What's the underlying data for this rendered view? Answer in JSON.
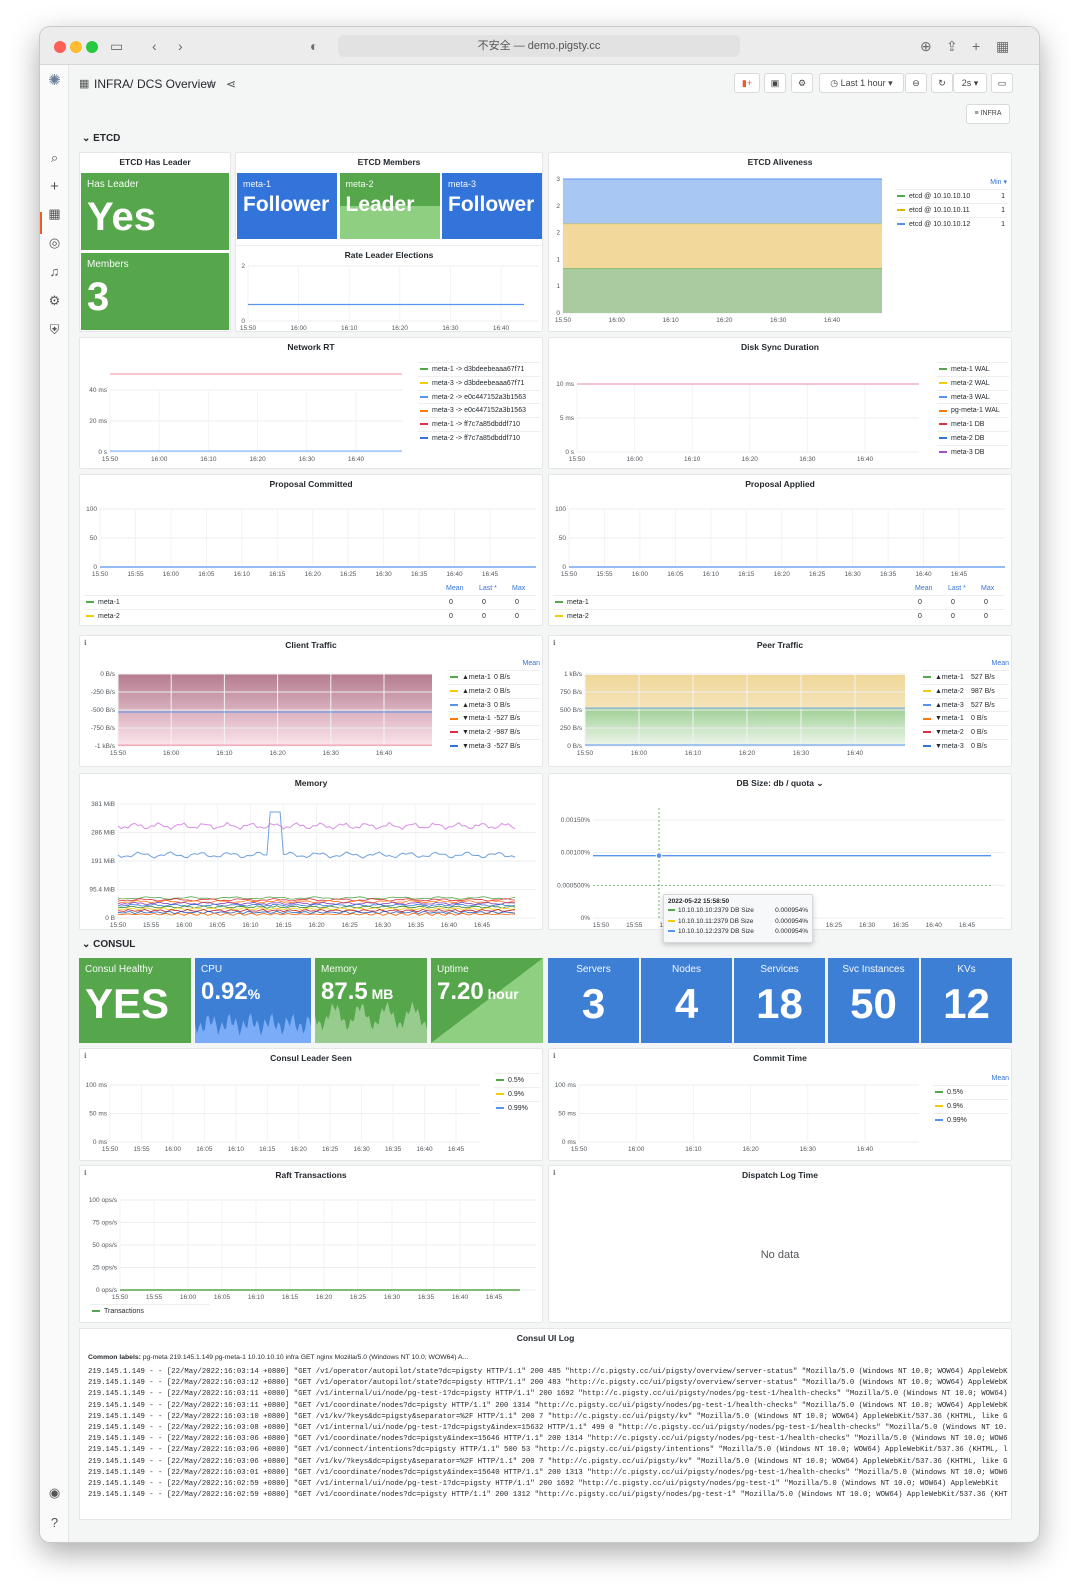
{
  "browser": {
    "url_text": "不安全 — demo.pigsty.cc"
  },
  "breadcrumb": {
    "folder": "INFRA",
    "dashboard": "DCS Overview"
  },
  "toolbar": {
    "time_range": "Last 1 hour",
    "refresh": "2s",
    "infra_link": "INFRA"
  },
  "sections": {
    "etcd": "ETCD",
    "consul": "CONSUL"
  },
  "etcd": {
    "has_leader": {
      "title": "ETCD Has Leader",
      "label": "Has Leader",
      "value": "Yes"
    },
    "members_stat": {
      "label": "Members",
      "value": "3"
    },
    "members": {
      "title": "ETCD Members",
      "items": [
        {
          "name": "meta-1",
          "role": "Follower",
          "color": "#3274d9"
        },
        {
          "name": "meta-2",
          "role": "Leader",
          "color": "#56a64b"
        },
        {
          "name": "meta-3",
          "role": "Follower",
          "color": "#3274d9"
        }
      ]
    },
    "rate_leader": {
      "title": "Rate Leader Elections",
      "y_ticks": [
        "2",
        "0"
      ],
      "x_ticks": [
        "15:50",
        "16:00",
        "16:10",
        "16:20",
        "16:30",
        "16:40"
      ]
    },
    "aliveness": {
      "title": "ETCD Aliveness",
      "y_ticks": [
        "3",
        "2",
        "2",
        "1",
        "1",
        "0"
      ],
      "x_ticks": [
        "15:50",
        "16:00",
        "16:10",
        "16:20",
        "16:30",
        "16:40"
      ],
      "legend_header": "Min",
      "legend": [
        {
          "name": "etcd @ 10.10.10.10",
          "value": "1",
          "color": "#56a64b"
        },
        {
          "name": "etcd @ 10.10.10.11",
          "value": "1",
          "color": "#e0b400"
        },
        {
          "name": "etcd @ 10.10.10.12",
          "value": "1",
          "color": "#5794f2"
        }
      ]
    },
    "network_rt": {
      "title": "Network RT",
      "y_ticks": [
        "40 ms",
        "20 ms",
        "0 s"
      ],
      "x_ticks": [
        "15:50",
        "16:00",
        "16:10",
        "16:20",
        "16:30",
        "16:40"
      ],
      "legend": [
        {
          "name": "meta-1 -> d3bdeebeaaa67f71",
          "color": "#56a64b"
        },
        {
          "name": "meta-3 -> d3bdeebeaaa67f71",
          "color": "#f2cc0c"
        },
        {
          "name": "meta-2 -> e0c447152a3b1563",
          "color": "#5794f2"
        },
        {
          "name": "meta-3 -> e0c447152a3b1563",
          "color": "#ff780a"
        },
        {
          "name": "meta-1 -> ff7c7a85dbddf710",
          "color": "#e02f44"
        },
        {
          "name": "meta-2 -> ff7c7a85dbddf710",
          "color": "#3274d9"
        }
      ]
    },
    "disk_sync": {
      "title": "Disk Sync Duration",
      "y_ticks": [
        "10 ms",
        "5 ms",
        "0 s"
      ],
      "x_ticks": [
        "15:50",
        "16:00",
        "16:10",
        "16:20",
        "16:30",
        "16:40"
      ],
      "legend": [
        {
          "name": "meta-1 WAL",
          "color": "#56a64b"
        },
        {
          "name": "meta-2 WAL",
          "color": "#f2cc0c"
        },
        {
          "name": "meta-3 WAL",
          "color": "#5794f2"
        },
        {
          "name": "pg-meta-1 WAL",
          "color": "#ff780a"
        },
        {
          "name": "meta-1 DB",
          "color": "#e02f44"
        },
        {
          "name": "meta-2 DB",
          "color": "#3274d9"
        },
        {
          "name": "meta-3 DB",
          "color": "#a352cc"
        }
      ]
    },
    "proposal_committed": {
      "title": "Proposal Committed",
      "y_ticks": [
        "100",
        "50",
        "0"
      ],
      "x_ticks": [
        "15:50",
        "15:55",
        "16:00",
        "16:05",
        "16:10",
        "16:15",
        "16:20",
        "16:25",
        "16:30",
        "16:35",
        "16:40",
        "16:45"
      ],
      "cols": [
        "Mean",
        "Last *",
        "Max"
      ],
      "legend": [
        {
          "name": "meta-1",
          "color": "#56a64b",
          "mean": "0",
          "last": "0",
          "max": "0"
        },
        {
          "name": "meta-2",
          "color": "#f2cc0c",
          "mean": "0",
          "last": "0",
          "max": "0"
        }
      ]
    },
    "proposal_applied": {
      "title": "Proposal Applied",
      "y_ticks": [
        "100",
        "50",
        "0"
      ],
      "x_ticks": [
        "15:50",
        "15:55",
        "16:00",
        "16:05",
        "16:10",
        "16:15",
        "16:20",
        "16:25",
        "16:30",
        "16:35",
        "16:40",
        "16:45"
      ],
      "cols": [
        "Mean",
        "Last *",
        "Max"
      ],
      "legend": [
        {
          "name": "meta-1",
          "color": "#56a64b",
          "mean": "0",
          "last": "0",
          "max": "0"
        },
        {
          "name": "meta-2",
          "color": "#f2cc0c",
          "mean": "0",
          "last": "0",
          "max": "0"
        }
      ]
    },
    "client_traffic": {
      "title": "Client Traffic",
      "y_ticks": [
        "0 B/s",
        "-250 B/s",
        "-500 B/s",
        "-750 B/s",
        "-1 kB/s"
      ],
      "x_ticks": [
        "15:50",
        "16:00",
        "16:10",
        "16:20",
        "16:30",
        "16:40"
      ],
      "legend_header": "Mean",
      "legend": [
        {
          "name": "▲meta-1",
          "value": "0 B/s",
          "color": "#56a64b"
        },
        {
          "name": "▲meta-2",
          "value": "0 B/s",
          "color": "#f2cc0c"
        },
        {
          "name": "▲meta-3",
          "value": "0 B/s",
          "color": "#5794f2"
        },
        {
          "name": "▼meta-1",
          "value": "-527 B/s",
          "color": "#ff780a"
        },
        {
          "name": "▼meta-2",
          "value": "-987 B/s",
          "color": "#e02f44"
        },
        {
          "name": "▼meta-3",
          "value": "-527 B/s",
          "color": "#3274d9"
        }
      ]
    },
    "peer_traffic": {
      "title": "Peer Traffic",
      "y_ticks": [
        "1 kB/s",
        "750 B/s",
        "500 B/s",
        "250 B/s",
        "0 B/s"
      ],
      "x_ticks": [
        "15:50",
        "16:00",
        "16:10",
        "16:20",
        "16:30",
        "16:40"
      ],
      "legend_header": "Mean",
      "legend": [
        {
          "name": "▲meta-1",
          "value": "527 B/s",
          "color": "#56a64b"
        },
        {
          "name": "▲meta-2",
          "value": "987 B/s",
          "color": "#f2cc0c"
        },
        {
          "name": "▲meta-3",
          "value": "527 B/s",
          "color": "#5794f2"
        },
        {
          "name": "▼meta-1",
          "value": "0 B/s",
          "color": "#ff780a"
        },
        {
          "name": "▼meta-2",
          "value": "0 B/s",
          "color": "#e02f44"
        },
        {
          "name": "▼meta-3",
          "value": "0 B/s",
          "color": "#3274d9"
        }
      ]
    },
    "memory": {
      "title": "Memory",
      "y_ticks": [
        "381 MiB",
        "286 MiB",
        "191 MiB",
        "95.4 MiB",
        "0 B"
      ],
      "x_ticks": [
        "15:50",
        "15:55",
        "16:00",
        "16:05",
        "16:10",
        "16:15",
        "16:20",
        "16:25",
        "16:30",
        "16:35",
        "16:40",
        "16:45"
      ]
    },
    "db_size": {
      "title": "DB Size: db / quota",
      "y_ticks": [
        "0.00150%",
        "0.00100%",
        "0.000500%",
        "0%"
      ],
      "x_ticks": [
        "15:50",
        "15:55",
        "16:00",
        "16:05",
        "16:10",
        "16:15",
        "16:20",
        "16:25",
        "16:30",
        "16:35",
        "16:40",
        "16:45"
      ],
      "tooltip": {
        "time": "2022-05-22 15:58:50",
        "rows": [
          {
            "name": "10.10.10.10:2379 DB Size",
            "value": "0.000954%",
            "color": "#56a64b"
          },
          {
            "name": "10.10.10.11:2379 DB Size",
            "value": "0.000954%",
            "color": "#f2cc0c"
          },
          {
            "name": "10.10.10.12:2379 DB Size",
            "value": "0.000954%",
            "color": "#5794f2"
          }
        ]
      }
    }
  },
  "consul": {
    "stats": [
      {
        "label": "Consul Healthy",
        "value": "YES",
        "unit": ""
      },
      {
        "label": "CPU",
        "value": "0.92",
        "unit": "%"
      },
      {
        "label": "Memory",
        "value": "87.5",
        "unit": " MB"
      },
      {
        "label": "Uptime",
        "value": "7.20",
        "unit": " hour"
      }
    ],
    "counts": [
      {
        "label": "Servers",
        "value": "3"
      },
      {
        "label": "Nodes",
        "value": "4"
      },
      {
        "label": "Services",
        "value": "18"
      },
      {
        "label": "Svc Instances",
        "value": "50"
      },
      {
        "label": "KVs",
        "value": "12"
      }
    ],
    "leader_seen": {
      "title": "Consul Leader Seen",
      "y_ticks": [
        "100 ms",
        "50 ms",
        "0 ms"
      ],
      "x_ticks": [
        "15:50",
        "15:55",
        "16:00",
        "16:05",
        "16:10",
        "16:15",
        "16:20",
        "16:25",
        "16:30",
        "16:35",
        "16:40",
        "16:45"
      ],
      "legend": [
        {
          "name": "0.5%",
          "color": "#56a64b"
        },
        {
          "name": "0.9%",
          "color": "#f2cc0c"
        },
        {
          "name": "0.99%",
          "color": "#5794f2"
        }
      ]
    },
    "commit_time": {
      "title": "Commit Time",
      "y_ticks": [
        "100 ms",
        "50 ms",
        "0 ms"
      ],
      "x_ticks": [
        "15:50",
        "16:00",
        "16:10",
        "16:20",
        "16:30",
        "16:40"
      ],
      "legend_header": "Mean",
      "legend": [
        {
          "name": "0.5%",
          "color": "#56a64b"
        },
        {
          "name": "0.9%",
          "color": "#f2cc0c"
        },
        {
          "name": "0.99%",
          "color": "#5794f2"
        }
      ]
    },
    "raft": {
      "title": "Raft Transactions",
      "y_ticks": [
        "100 ops/s",
        "75 ops/s",
        "50 ops/s",
        "25 ops/s",
        "0 ops/s"
      ],
      "x_ticks": [
        "15:50",
        "15:55",
        "16:00",
        "16:05",
        "16:10",
        "16:15",
        "16:20",
        "16:25",
        "16:30",
        "16:35",
        "16:40",
        "16:45"
      ],
      "legend": [
        {
          "name": "Transactions",
          "color": "#56a64b"
        }
      ]
    },
    "dispatch": {
      "title": "Dispatch Log Time",
      "no_data": "No data"
    },
    "log": {
      "title": "Consul UI Log",
      "common_label": "Common labels:",
      "labels": "pg-meta   219.145.1.149   pg-meta-1   10.10.10.10   infra   GET   nginx   Mozilla/5.0 (Windows NT 10.0; WOW64) A...",
      "lines": [
        "219.145.1.149 - - [22/May/2022:16:03:14 +0800] \"GET /v1/operator/autopilot/state?dc=pigsty HTTP/1.1\" 200 485 \"http://c.pigsty.cc/ui/pigsty/overview/server-status\" \"Mozilla/5.0 (Windows NT 10.0; WOW64) AppleWebK",
        "219.145.1.149 - - [22/May/2022:16:03:12 +0800] \"GET /v1/operator/autopilot/state?dc=pigsty HTTP/1.1\" 200 483 \"http://c.pigsty.cc/ui/pigsty/overview/server-status\" \"Mozilla/5.0 (Windows NT 10.0; WOW64) AppleWebK",
        "219.145.1.149 - - [22/May/2022:16:03:11 +0800] \"GET /v1/internal/ui/node/pg-test-1?dc=pigsty HTTP/1.1\" 200 1692 \"http://c.pigsty.cc/ui/pigsty/nodes/pg-test-1/health-checks\" \"Mozilla/5.0 (Windows NT 10.0; WOW64)",
        "219.145.1.149 - - [22/May/2022:16:03:11 +0800] \"GET /v1/coordinate/nodes?dc=pigsty HTTP/1.1\" 200 1314 \"http://c.pigsty.cc/ui/pigsty/nodes/pg-test-1/health-checks\" \"Mozilla/5.0 (Windows NT 10.0; WOW64) AppleWebK",
        "219.145.1.149 - - [22/May/2022:16:03:10 +0800] \"GET /v1/kv/?keys&dc=pigsty&separator=%2F HTTP/1.1\" 200 7 \"http://c.pigsty.cc/ui/pigsty/kv\" \"Mozilla/5.0 (Windows NT 10.0; WOW64) AppleWebKit/537.36 (KHTML, like G",
        "219.145.1.149 - - [22/May/2022:16:03:08 +0800] \"GET /v1/internal/ui/node/pg-test-1?dc=pigsty&index=15632 HTTP/1.1\" 499 0 \"http://c.pigsty.cc/ui/pigsty/nodes/pg-test-1/health-checks\" \"Mozilla/5.0 (Windows NT 10.",
        "219.145.1.149 - - [22/May/2022:16:03:06 +0800] \"GET /v1/coordinate/nodes?dc=pigsty&index=15646 HTTP/1.1\" 200 1314 \"http://c.pigsty.cc/ui/pigsty/nodes/pg-test-1/health-checks\" \"Mozilla/5.0 (Windows NT 10.0; WOW6",
        "219.145.1.149 - - [22/May/2022:16:03:06 +0800] \"GET /v1/connect/intentions?dc=pigsty HTTP/1.1\" 500 53 \"http://c.pigsty.cc/ui/pigsty/intentions\" \"Mozilla/5.0 (Windows NT 10.0; WOW64) AppleWebKit/537.36 (KHTML, l",
        "219.145.1.149 - - [22/May/2022:16:03:06 +0800] \"GET /v1/kv/?keys&dc=pigsty&separator=%2F HTTP/1.1\" 200 7 \"http://c.pigsty.cc/ui/pigsty/kv\" \"Mozilla/5.0 (Windows NT 10.0; WOW64) AppleWebKit/537.36 (KHTML, like G",
        "219.145.1.149 - - [22/May/2022:16:03:01 +0800] \"GET /v1/coordinate/nodes?dc=pigsty&index=15640 HTTP/1.1\" 200 1313 \"http://c.pigsty.cc/ui/pigsty/nodes/pg-test-1/health-checks\" \"Mozilla/5.0 (Windows NT 10.0; WOW6",
        "219.145.1.149 - - [22/May/2022:16:02:59 +0800] \"GET /v1/internal/ui/node/pg-test-1?dc=pigsty HTTP/1.1\" 200 1692 \"http://c.pigsty.cc/ui/pigsty/nodes/pg-test-1\" \"Mozilla/5.0 (Windows NT 10.0; WOW64) AppleWebKit",
        "219.145.1.149 - - [22/May/2022:16:02:59 +0800] \"GET /v1/coordinate/nodes?dc=pigsty HTTP/1.1\" 200 1312 \"http://c.pigsty.cc/ui/pigsty/nodes/pg-test-1\" \"Mozilla/5.0 (Windows NT 10.0; WOW64) AppleWebKit/537.36 (KHT"
      ]
    }
  },
  "chart_data": [
    {
      "type": "area",
      "title": "ETCD Aliveness",
      "x": [
        "15:50",
        "16:00",
        "16:10",
        "16:20",
        "16:30",
        "16:40"
      ],
      "series": [
        {
          "name": "etcd @ 10.10.10.10",
          "values": [
            1,
            1,
            1,
            1,
            1,
            1
          ]
        },
        {
          "name": "etcd @ 10.10.10.11",
          "values": [
            1,
            1,
            1,
            1,
            1,
            1
          ]
        },
        {
          "name": "etcd @ 10.10.10.12",
          "values": [
            1,
            1,
            1,
            1,
            1,
            1
          ]
        }
      ],
      "ylim": [
        0,
        3
      ]
    },
    {
      "type": "line",
      "title": "Network RT",
      "x": [
        "15:50",
        "16:00",
        "16:10",
        "16:20",
        "16:30",
        "16:40"
      ],
      "series": [
        {
          "name": "meta-1 -> ff7c7a85dbddf710",
          "values": [
            49,
            49,
            49,
            49,
            49,
            49
          ]
        },
        {
          "name": "meta-2 -> e0c447152a3b1563",
          "values": [
            0,
            0,
            0,
            0,
            0,
            0
          ]
        }
      ],
      "ylim": [
        0,
        55
      ]
    },
    {
      "type": "line",
      "title": "Disk Sync Duration",
      "x": [
        "15:50",
        "16:00",
        "16:10",
        "16:20",
        "16:30",
        "16:40"
      ],
      "series": [
        {
          "name": "meta-1 DB",
          "values": [
            10,
            10,
            10,
            10,
            10,
            10
          ]
        }
      ],
      "ylim": [
        0,
        12
      ]
    },
    {
      "type": "area",
      "title": "Client Traffic",
      "x": [
        "15:50",
        "16:00",
        "16:10",
        "16:20",
        "16:30",
        "16:40"
      ],
      "series": [
        {
          "name": "▼meta-1",
          "values": [
            -527,
            -527,
            -527,
            -527,
            -527,
            -527
          ]
        },
        {
          "name": "▼meta-2",
          "values": [
            -987,
            -987,
            -987,
            -987,
            -987,
            -987
          ]
        }
      ],
      "ylim": [
        -1050,
        0
      ]
    },
    {
      "type": "area",
      "title": "Peer Traffic",
      "x": [
        "15:50",
        "16:00",
        "16:10",
        "16:20",
        "16:30",
        "16:40"
      ],
      "series": [
        {
          "name": "▲meta-1",
          "values": [
            527,
            527,
            527,
            527,
            527,
            527
          ]
        },
        {
          "name": "▲meta-2",
          "values": [
            987,
            987,
            987,
            987,
            987,
            987
          ]
        }
      ],
      "ylim": [
        0,
        1050
      ]
    },
    {
      "type": "line",
      "title": "DB Size: db / quota",
      "x": [
        "15:50",
        "15:55",
        "16:00",
        "16:05",
        "16:10",
        "16:15",
        "16:20",
        "16:25",
        "16:30",
        "16:35",
        "16:40",
        "16:45"
      ],
      "series": [
        {
          "name": "10.10.10.10:2379 DB Size",
          "values": [
            0.000954,
            0.000954,
            0.000954,
            0.000954,
            0.000954,
            0.000954,
            0.000954,
            0.000954,
            0.000954,
            0.000954,
            0.000954,
            0.000954
          ]
        }
      ],
      "ylim": [
        0,
        0.0017
      ]
    }
  ]
}
